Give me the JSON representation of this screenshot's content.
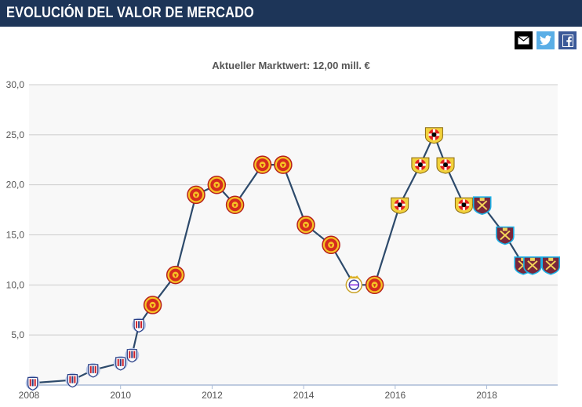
{
  "header": {
    "title": "EVOLUCIÓN DEL VALOR DE MERCADO"
  },
  "share": {
    "icons": [
      "email-icon",
      "twitter-icon",
      "facebook-icon"
    ]
  },
  "colors": {
    "header_bg": "#1d3558",
    "line": "#2d4a6b",
    "twitter": "#5aaee6",
    "facebook": "#3b5998"
  },
  "chart_data": {
    "type": "line",
    "title": "Aktueller Marktwert: 12,00 mill. €",
    "xlabel": "",
    "ylabel": "",
    "xlim": [
      2008,
      2019.55
    ],
    "ylim": [
      0,
      30
    ],
    "grid": true,
    "x_ticks": [
      "2008",
      "2010",
      "2012",
      "2014",
      "2016",
      "2018"
    ],
    "y_ticks": [
      "5,0",
      "10,0",
      "15,0",
      "20,0",
      "25,0",
      "30,0"
    ],
    "series": [
      {
        "values": [
          {
            "x": 2008.08,
            "y": 0.2,
            "club": "Chivas"
          },
          {
            "x": 2008.95,
            "y": 0.5,
            "club": "Chivas"
          },
          {
            "x": 2009.4,
            "y": 1.5,
            "club": "Chivas"
          },
          {
            "x": 2010.0,
            "y": 2.2,
            "club": "Chivas"
          },
          {
            "x": 2010.25,
            "y": 3.0,
            "club": "Chivas"
          },
          {
            "x": 2010.4,
            "y": 6.0,
            "club": "Chivas"
          },
          {
            "x": 2010.7,
            "y": 8.0,
            "club": "Manchester United"
          },
          {
            "x": 2011.2,
            "y": 11.0,
            "club": "Manchester United"
          },
          {
            "x": 2011.65,
            "y": 19.0,
            "club": "Manchester United"
          },
          {
            "x": 2012.1,
            "y": 20.0,
            "club": "Manchester United"
          },
          {
            "x": 2012.5,
            "y": 18.0,
            "club": "Manchester United"
          },
          {
            "x": 2013.1,
            "y": 22.0,
            "club": "Manchester United"
          },
          {
            "x": 2013.55,
            "y": 22.0,
            "club": "Manchester United"
          },
          {
            "x": 2014.05,
            "y": 16.0,
            "club": "Manchester United"
          },
          {
            "x": 2014.6,
            "y": 14.0,
            "club": "Manchester United"
          },
          {
            "x": 2015.1,
            "y": 10.0,
            "club": "Real Madrid"
          },
          {
            "x": 2015.55,
            "y": 10.0,
            "club": "Manchester United"
          },
          {
            "x": 2016.1,
            "y": 18.0,
            "club": "Bayer Leverkusen"
          },
          {
            "x": 2016.55,
            "y": 22.0,
            "club": "Bayer Leverkusen"
          },
          {
            "x": 2016.85,
            "y": 25.0,
            "club": "Bayer Leverkusen"
          },
          {
            "x": 2017.1,
            "y": 22.0,
            "club": "Bayer Leverkusen"
          },
          {
            "x": 2017.5,
            "y": 18.0,
            "club": "Bayer Leverkusen"
          },
          {
            "x": 2017.9,
            "y": 18.0,
            "club": "West Ham United"
          },
          {
            "x": 2018.4,
            "y": 15.0,
            "club": "West Ham United"
          },
          {
            "x": 2018.8,
            "y": 12.0,
            "club": "West Ham United"
          },
          {
            "x": 2019.0,
            "y": 12.0,
            "club": "West Ham United"
          },
          {
            "x": 2019.4,
            "y": 12.0,
            "club": "West Ham United"
          }
        ]
      }
    ]
  }
}
